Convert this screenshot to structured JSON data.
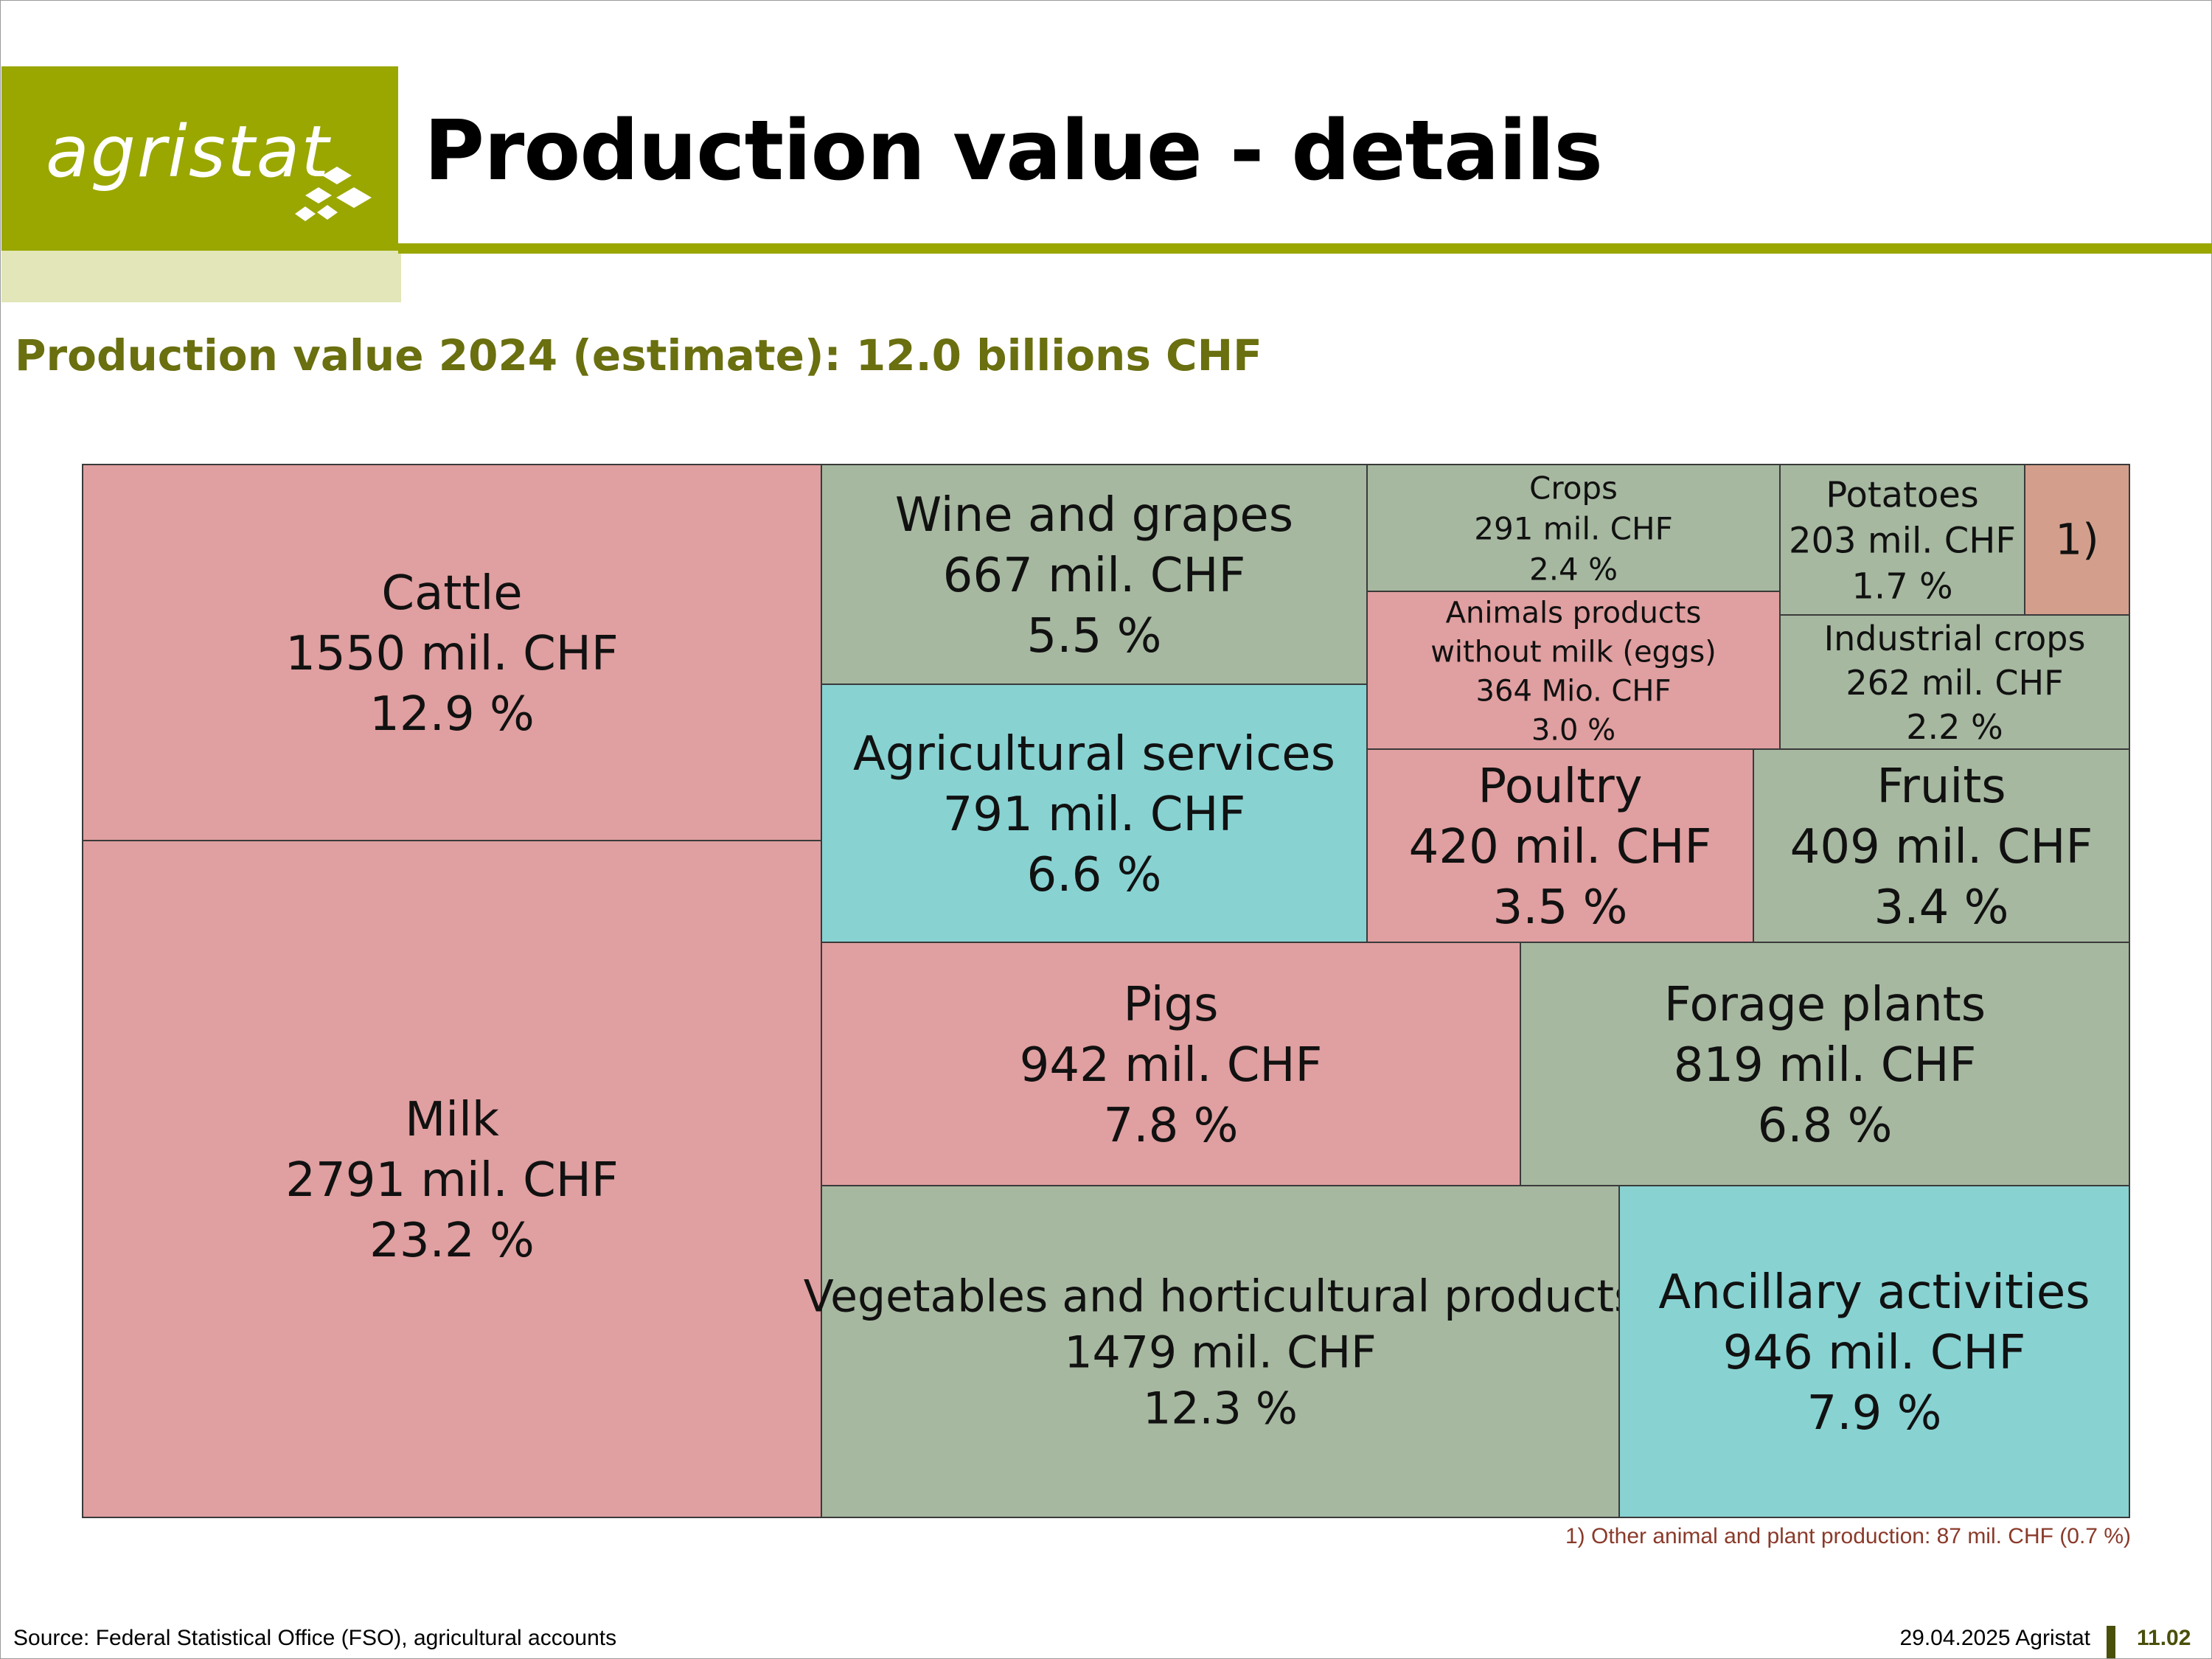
{
  "header": {
    "logo_text": "agristat",
    "title": "Production value - details",
    "brand_color": "#9aa700"
  },
  "subtitle": "Production value 2024 (estimate): 12.0 billions CHF",
  "colors": {
    "animal": "#e09fa0",
    "plant": "#a6b8a0",
    "services": "#88d2d2",
    "other": "#d39f8c"
  },
  "chart_data": {
    "type": "treemap",
    "unit": "mil. CHF",
    "items": [
      {
        "key": "cattle",
        "label": "Cattle",
        "value_text": "1550 mil. CHF",
        "pct_text": "12.9 %",
        "value": 1550,
        "percent": 12.9,
        "category": "animal"
      },
      {
        "key": "milk",
        "label": "Milk",
        "value_text": "2791 mil. CHF",
        "pct_text": "23.2 %",
        "value": 2791,
        "percent": 23.2,
        "category": "animal"
      },
      {
        "key": "wine",
        "label": "Wine and grapes",
        "value_text": "667 mil. CHF",
        "pct_text": "5.5 %",
        "value": 667,
        "percent": 5.5,
        "category": "plant"
      },
      {
        "key": "services",
        "label": "Agricultural services",
        "value_text": "791 mil. CHF",
        "pct_text": "6.6 %",
        "value": 791,
        "percent": 6.6,
        "category": "services"
      },
      {
        "key": "crops",
        "label": "Crops",
        "value_text": "291 mil. CHF",
        "pct_text": "2.4 %",
        "value": 291,
        "percent": 2.4,
        "category": "plant"
      },
      {
        "key": "potatoes",
        "label": "Potatoes",
        "value_text": "203 mil. CHF",
        "pct_text": "1.7 %",
        "value": 203,
        "percent": 1.7,
        "category": "plant"
      },
      {
        "key": "other",
        "label": "1)",
        "value_text": "",
        "pct_text": "",
        "value": 87,
        "percent": 0.7,
        "category": "other"
      },
      {
        "key": "eggs",
        "label": "Animals products without milk (eggs)",
        "value_text": "364 Mio. CHF",
        "pct_text": "3.0 %",
        "value": 364,
        "percent": 3.0,
        "category": "animal"
      },
      {
        "key": "industrial",
        "label": "Industrial crops",
        "value_text": "262 mil. CHF",
        "pct_text": "2.2 %",
        "value": 262,
        "percent": 2.2,
        "category": "plant"
      },
      {
        "key": "poultry",
        "label": "Poultry",
        "value_text": "420 mil. CHF",
        "pct_text": "3.5 %",
        "value": 420,
        "percent": 3.5,
        "category": "animal"
      },
      {
        "key": "fruits",
        "label": "Fruits",
        "value_text": "409 mil. CHF",
        "pct_text": "3.4 %",
        "value": 409,
        "percent": 3.4,
        "category": "plant"
      },
      {
        "key": "pigs",
        "label": "Pigs",
        "value_text": "942 mil. CHF",
        "pct_text": "7.8 %",
        "value": 942,
        "percent": 7.8,
        "category": "animal"
      },
      {
        "key": "forage",
        "label": "Forage plants",
        "value_text": "819 mil. CHF",
        "pct_text": "6.8 %",
        "value": 819,
        "percent": 6.8,
        "category": "plant"
      },
      {
        "key": "vegetables",
        "label": "Vegetables and horticultural products",
        "value_text": "1479 mil. CHF",
        "pct_text": "12.3 %",
        "value": 1479,
        "percent": 12.3,
        "category": "plant"
      },
      {
        "key": "ancillary",
        "label": "Ancillary activities",
        "value_text": "946 mil. CHF",
        "pct_text": "7.9 %",
        "value": 946,
        "percent": 7.9,
        "category": "services"
      }
    ]
  },
  "footnote": "1) Other animal and plant production: 87 mil. CHF (0.7 %)",
  "footer": {
    "source": "Source: Federal Statistical Office (FSO), agricultural accounts",
    "date": "29.04.2025 Agristat",
    "page": "11.02"
  }
}
